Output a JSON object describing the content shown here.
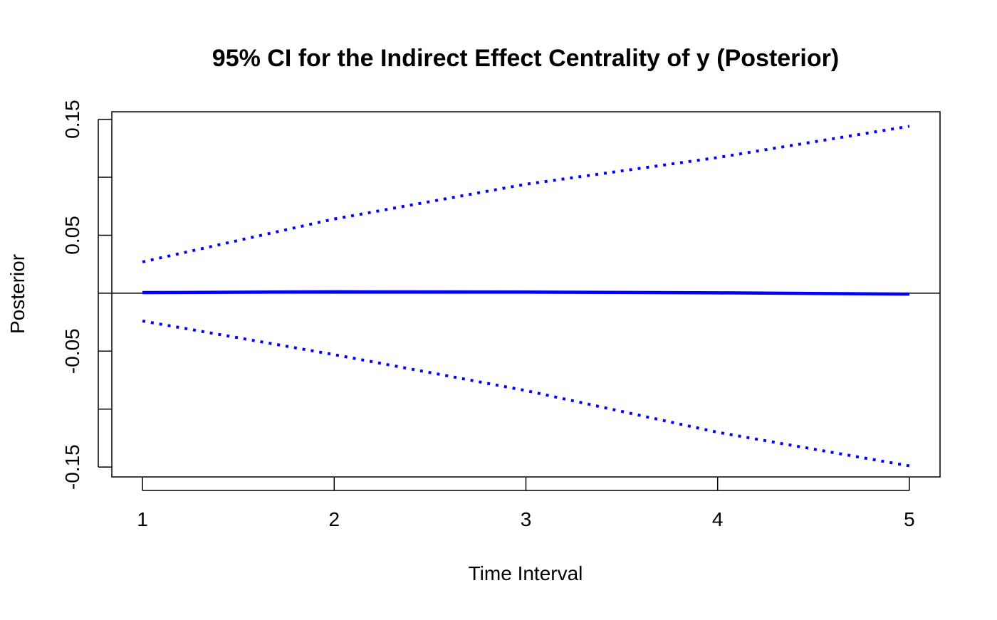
{
  "chart_data": {
    "type": "line",
    "title": "95% CI for the Indirect Effect Centrality of y (Posterior)",
    "xlabel": "Time Interval",
    "ylabel": "Posterior",
    "x": [
      1,
      2,
      3,
      4,
      5
    ],
    "x_ticks": [
      "1",
      "2",
      "3",
      "4",
      "5"
    ],
    "y_ticks": [
      -0.15,
      -0.1,
      -0.05,
      0.0,
      0.05,
      0.1,
      0.15
    ],
    "y_tick_labels": [
      "-0.15",
      "",
      "-0.05",
      "",
      "0.05",
      "",
      "0.15"
    ],
    "xlim": [
      0.84,
      5.16
    ],
    "ylim": [
      -0.1585,
      0.1565
    ],
    "reference_line_y": 0,
    "grid": false,
    "legend": "none",
    "series": [
      {
        "role": "upper",
        "values": [
          0.027,
          0.064,
          0.094,
          0.117,
          0.144
        ],
        "color": "#0000ff",
        "style": "dotted"
      },
      {
        "role": "estimate",
        "values": [
          0.0005,
          0.0012,
          0.001,
          0.0003,
          -0.0008
        ],
        "color": "#0000ff",
        "style": "solid"
      },
      {
        "role": "lower",
        "values": [
          -0.024,
          -0.053,
          -0.084,
          -0.12,
          -0.149
        ],
        "color": "#0000ff",
        "style": "dotted"
      }
    ]
  }
}
